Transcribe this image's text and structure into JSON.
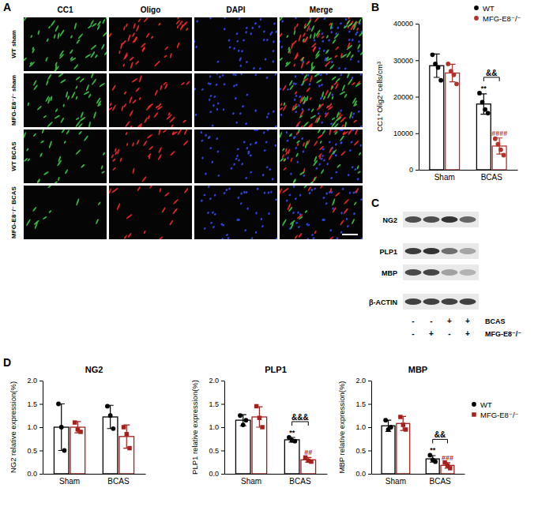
{
  "panel_labels": [
    "A",
    "B",
    "C",
    "D"
  ],
  "images": {
    "columns": [
      "CC1",
      "Oligo",
      "DAPI",
      "Merge"
    ],
    "rows": [
      "WT sham",
      "MFG-E8⁻/⁻ sham",
      "WT BCAS",
      "MFG-E8⁻/⁻ BCAS"
    ]
  },
  "blot": {
    "bands": [
      "NG2",
      "PLP1",
      "MBP",
      "β-ACTIN"
    ],
    "conditions": [
      {
        "label": "BCAS",
        "signs": [
          "-",
          "-",
          "+",
          "+"
        ]
      },
      {
        "label": "MFG-E8⁻/⁻",
        "signs": [
          "-",
          "+",
          "-",
          "+"
        ]
      }
    ]
  },
  "chart_data": [
    {
      "type": "bar",
      "y_label": "CC1⁺Olig2⁺cells/cm³",
      "categories": [
        "Sham",
        "BCAS"
      ],
      "ylim": [
        0,
        40000
      ],
      "yticks": [
        0,
        10000,
        20000,
        30000,
        40000
      ],
      "legend": "top-right",
      "series": [
        {
          "name": "WT",
          "color": "#000000",
          "marker": "circle",
          "values": [
            28500,
            18000
          ],
          "errors": [
            3200,
            2800
          ],
          "points": [
            [
              31500,
              29000,
              28000,
              24500
            ],
            [
              21000,
              18500,
              16500,
              15500
            ]
          ]
        },
        {
          "name": "MFG-E8⁻/⁻",
          "color": "#b5322b",
          "marker": "circle",
          "values": [
            26500,
            6500
          ],
          "errors": [
            2400,
            2200
          ],
          "points": [
            [
              29000,
              27000,
              26000,
              23500
            ],
            [
              8500,
              7000,
              5500,
              4000
            ]
          ]
        }
      ],
      "annotations": [
        {
          "text": "**",
          "category": "BCAS",
          "series": "WT"
        },
        {
          "text": "####",
          "category": "BCAS",
          "series": "MFG-E8⁻/⁻"
        },
        {
          "text": "&&",
          "category": "BCAS",
          "between": [
            "WT",
            "MFG-E8⁻/⁻"
          ]
        }
      ]
    },
    {
      "type": "bar",
      "title": "NG2",
      "y_label": "NG2 relative expression(%)",
      "categories": [
        "Sham",
        "BCAS"
      ],
      "ylim": [
        0,
        2
      ],
      "yticks": [
        {
          "value": 0,
          "label": "0.0"
        },
        {
          "value": 0.5,
          "label": "0.5"
        },
        {
          "value": 1,
          "label": "1.0"
        },
        {
          "value": 1.5,
          "label": "1.5"
        },
        {
          "value": 2,
          "label": "2.0"
        }
      ],
      "series": [
        {
          "name": "WT",
          "color": "#000000",
          "marker": "circle",
          "values": [
            1.0,
            1.22
          ],
          "errors": [
            0.5,
            0.25
          ],
          "points": [
            [
              1.5,
              1.0,
              0.5
            ],
            [
              1.45,
              1.25,
              0.97
            ]
          ]
        },
        {
          "name": "MFG-E8⁻/⁻",
          "color": "#a3201c",
          "marker": "square",
          "values": [
            1.0,
            0.8
          ],
          "errors": [
            0.12,
            0.25
          ],
          "points": [
            [
              1.1,
              0.95,
              0.9
            ],
            [
              1.0,
              0.85,
              0.55
            ]
          ]
        }
      ]
    },
    {
      "type": "bar",
      "title": "PLP1",
      "y_label": "PLP1 relative expression(%)",
      "categories": [
        "Sham",
        "BCAS"
      ],
      "ylim": [
        0,
        2
      ],
      "yticks": [
        {
          "value": 0,
          "label": "0.0"
        },
        {
          "value": 0.5,
          "label": "0.5"
        },
        {
          "value": 1,
          "label": "1.0"
        },
        {
          "value": 1.5,
          "label": "1.5"
        },
        {
          "value": 2,
          "label": "2.0"
        }
      ],
      "series": [
        {
          "name": "WT",
          "color": "#000000",
          "marker": "circle",
          "values": [
            1.15,
            0.73
          ],
          "errors": [
            0.12,
            0.05
          ],
          "points": [
            [
              1.25,
              1.05,
              1.15
            ],
            [
              0.78,
              0.72,
              0.7
            ]
          ]
        },
        {
          "name": "MFG-E8⁻/⁻",
          "color": "#a3201c",
          "marker": "square",
          "values": [
            1.22,
            0.3
          ],
          "errors": [
            0.22,
            0.05
          ],
          "points": [
            [
              1.45,
              1.2,
              1.0
            ],
            [
              0.35,
              0.28,
              0.26
            ]
          ]
        }
      ],
      "annotations": [
        {
          "text": "**",
          "category": "BCAS",
          "series": "WT"
        },
        {
          "text": "##",
          "category": "BCAS",
          "series": "MFG-E8⁻/⁻"
        },
        {
          "text": "&&&",
          "category": "BCAS",
          "between": [
            "WT",
            "MFG-E8⁻/⁻"
          ]
        }
      ]
    },
    {
      "type": "bar",
      "title": "MBP",
      "y_label": "MBP relative expression(%)",
      "categories": [
        "Sham",
        "BCAS"
      ],
      "ylim": [
        0,
        2
      ],
      "yticks": [
        {
          "value": 0,
          "label": "0.0"
        },
        {
          "value": 0.5,
          "label": "0.5"
        },
        {
          "value": 1,
          "label": "1.0"
        },
        {
          "value": 1.5,
          "label": "1.5"
        },
        {
          "value": 2,
          "label": "2.0"
        }
      ],
      "legend": "right",
      "series": [
        {
          "name": "WT",
          "color": "#000000",
          "marker": "circle",
          "values": [
            1.03,
            0.32
          ],
          "errors": [
            0.12,
            0.07
          ],
          "points": [
            [
              1.15,
              0.95,
              1.0
            ],
            [
              0.4,
              0.3,
              0.26
            ]
          ]
        },
        {
          "name": "MFG-E8⁻/⁻",
          "color": "#a3201c",
          "marker": "square",
          "values": [
            1.08,
            0.18
          ],
          "errors": [
            0.15,
            0.06
          ],
          "points": [
            [
              1.22,
              1.05,
              0.95
            ],
            [
              0.24,
              0.18,
              0.12
            ]
          ]
        }
      ],
      "annotations": [
        {
          "text": "**",
          "category": "BCAS",
          "series": "WT"
        },
        {
          "text": "###",
          "category": "BCAS",
          "series": "MFG-E8⁻/⁻"
        },
        {
          "text": "&&",
          "category": "BCAS",
          "between": [
            "WT",
            "MFG-E8⁻/⁻"
          ]
        }
      ]
    }
  ]
}
